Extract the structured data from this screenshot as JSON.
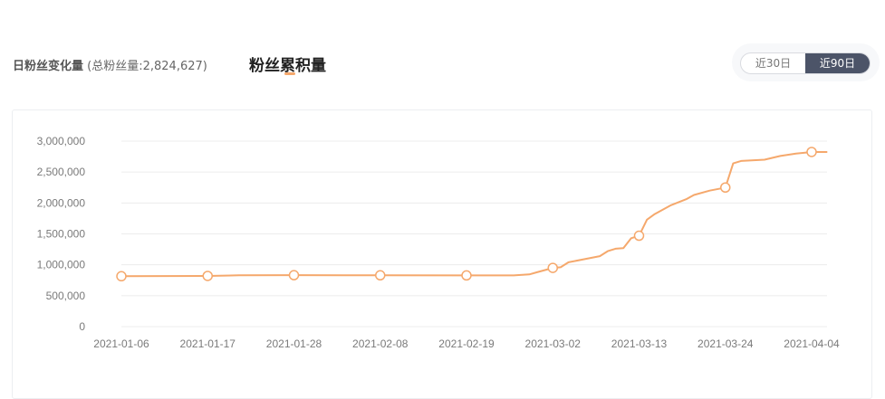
{
  "header": {
    "daily_label": "日粉丝变化量",
    "daily_total": "(总粉丝量:2,824,627)",
    "cumulative_label": "粉丝累积量",
    "range_options": [
      "近30日",
      "近90日"
    ],
    "range_selected": "近90日"
  },
  "colors": {
    "line": "#f5a86c",
    "marker_fill": "#ffffff",
    "grid": "#ececec",
    "active_toggle": "#4c5468"
  },
  "chart_data": {
    "type": "line",
    "title": "",
    "xlabel": "",
    "ylabel": "",
    "ylim": [
      0,
      3000000
    ],
    "y_ticks": [
      "0",
      "500,000",
      "1,000,000",
      "1,500,000",
      "2,000,000",
      "2,500,000",
      "3,000,000"
    ],
    "y_tick_values": [
      0,
      500000,
      1000000,
      1500000,
      2000000,
      2500000,
      3000000
    ],
    "x_ticks": [
      "2021-01-06",
      "2021-01-17",
      "2021-01-28",
      "2021-02-08",
      "2021-02-19",
      "2021-03-02",
      "2021-03-13",
      "2021-03-24",
      "2021-04-04"
    ],
    "grid": true,
    "legend": "none",
    "series": [
      {
        "values": [
          [
            "2021-01-06",
            815000
          ],
          [
            "2021-01-17",
            820000
          ],
          [
            "2021-01-21",
            830000
          ],
          [
            "2021-01-28",
            832000
          ],
          [
            "2021-02-08",
            830000
          ],
          [
            "2021-02-19",
            828000
          ],
          [
            "2021-02-25",
            828000
          ],
          [
            "2021-02-27",
            845000
          ],
          [
            "2021-02-28",
            880000
          ],
          [
            "2021-03-02",
            950000
          ],
          [
            "2021-03-03",
            960000
          ],
          [
            "2021-03-04",
            1040000
          ],
          [
            "2021-03-06",
            1090000
          ],
          [
            "2021-03-08",
            1140000
          ],
          [
            "2021-03-09",
            1220000
          ],
          [
            "2021-03-10",
            1260000
          ],
          [
            "2021-03-11",
            1270000
          ],
          [
            "2021-03-12",
            1430000
          ],
          [
            "2021-03-13",
            1470000
          ],
          [
            "2021-03-14",
            1730000
          ],
          [
            "2021-03-15",
            1820000
          ],
          [
            "2021-03-17",
            1960000
          ],
          [
            "2021-03-19",
            2060000
          ],
          [
            "2021-03-20",
            2130000
          ],
          [
            "2021-03-22",
            2200000
          ],
          [
            "2021-03-24",
            2250000
          ],
          [
            "2021-03-25",
            2640000
          ],
          [
            "2021-03-26",
            2680000
          ],
          [
            "2021-03-29",
            2700000
          ],
          [
            "2021-03-31",
            2760000
          ],
          [
            "2021-04-02",
            2800000
          ],
          [
            "2021-04-04",
            2824627
          ],
          [
            "2021-04-06",
            2824627
          ]
        ],
        "markers": [
          [
            "2021-01-06",
            815000
          ],
          [
            "2021-01-17",
            820000
          ],
          [
            "2021-01-28",
            832000
          ],
          [
            "2021-02-08",
            830000
          ],
          [
            "2021-02-19",
            828000
          ],
          [
            "2021-03-02",
            950000
          ],
          [
            "2021-03-13",
            1470000
          ],
          [
            "2021-03-24",
            2250000
          ],
          [
            "2021-04-04",
            2824627
          ]
        ]
      }
    ]
  }
}
